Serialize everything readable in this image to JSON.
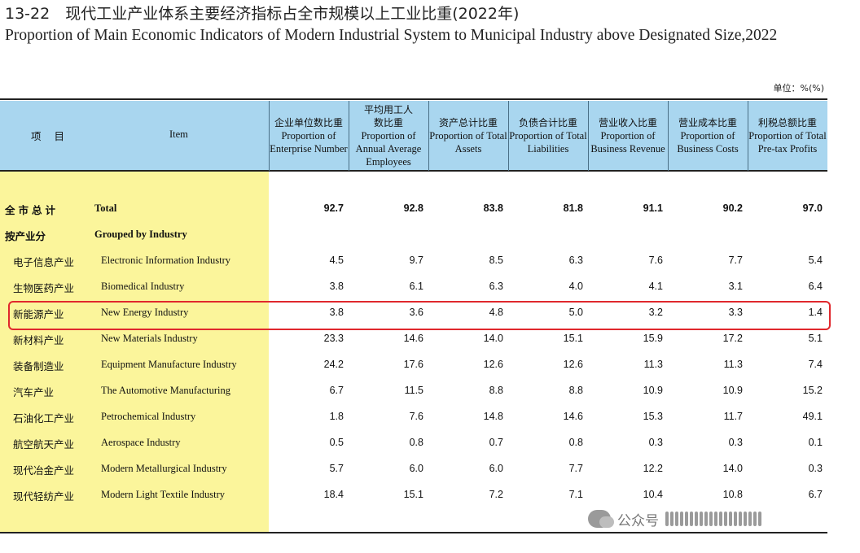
{
  "title": {
    "cn": "13-22　现代工业产业体系主要经济指标占全市规模以上工业比重(2022年)",
    "en": "Proportion of Main Economic Indicators of Modern Industrial System to Municipal Industry above Designated Size,2022"
  },
  "unit": "单位：%(%)",
  "header": {
    "item_cn": "项 目",
    "item_en": "Item",
    "columns": [
      {
        "cn": "企业单位数比重",
        "en": "Proportion of Enterprise Number"
      },
      {
        "cn": "平均用工人数比重",
        "en": "Proportion of Annual Average Employees"
      },
      {
        "cn": "资产总计比重",
        "en": "Proportion of Total Assets"
      },
      {
        "cn": "负债合计比重",
        "en": "Proportion of Total Liabilities"
      },
      {
        "cn": "营业收入比重",
        "en": "Proportion of Business Revenue"
      },
      {
        "cn": "营业成本比重",
        "en": "Proportion of Business Costs"
      },
      {
        "cn": "利税总额比重",
        "en": "Proportion of Total Pre-tax Profits"
      }
    ]
  },
  "rows": [
    {
      "cn": "全市总计",
      "en": "Total",
      "values": [
        "92.7",
        "92.8",
        "83.8",
        "81.8",
        "91.1",
        "90.2",
        "97.0"
      ]
    },
    {
      "cn": "按产业分",
      "en": "Grouped by Industry",
      "values": []
    },
    {
      "cn": "电子信息产业",
      "en": "Electronic Information Industry",
      "values": [
        "4.5",
        "9.7",
        "8.5",
        "6.3",
        "7.6",
        "7.7",
        "5.4"
      ]
    },
    {
      "cn": "生物医药产业",
      "en": "Biomedical Industry",
      "values": [
        "3.8",
        "6.1",
        "6.3",
        "4.0",
        "4.1",
        "3.1",
        "6.4"
      ]
    },
    {
      "cn": "新能源产业",
      "en": "New Energy Industry",
      "values": [
        "3.8",
        "3.6",
        "4.8",
        "5.0",
        "3.2",
        "3.3",
        "1.4"
      ]
    },
    {
      "cn": "新材料产业",
      "en": "New Materials Industry",
      "values": [
        "23.3",
        "14.6",
        "14.0",
        "15.1",
        "15.9",
        "17.2",
        "5.1"
      ]
    },
    {
      "cn": "装备制造业",
      "en": "Equipment Manufacture Industry",
      "values": [
        "24.2",
        "17.6",
        "12.6",
        "12.6",
        "11.3",
        "11.3",
        "7.4"
      ]
    },
    {
      "cn": "汽车产业",
      "en": "The Automotive Manufacturing",
      "values": [
        "6.7",
        "11.5",
        "8.8",
        "8.8",
        "10.9",
        "10.9",
        "15.2"
      ]
    },
    {
      "cn": "石油化工产业",
      "en": "Petrochemical Industry",
      "values": [
        "1.8",
        "7.6",
        "14.8",
        "14.6",
        "15.3",
        "11.7",
        "49.1"
      ]
    },
    {
      "cn": "航空航天产业",
      "en": "Aerospace Industry",
      "values": [
        "0.5",
        "0.8",
        "0.7",
        "0.8",
        "0.3",
        "0.3",
        "0.1"
      ]
    },
    {
      "cn": "现代冶金产业",
      "en": "Modern Metallurgical Industry",
      "values": [
        "5.7",
        "6.0",
        "6.0",
        "7.7",
        "12.2",
        "14.0",
        "0.3"
      ]
    },
    {
      "cn": "现代轻纺产业",
      "en": "Modern Light Textile Industry",
      "values": [
        "18.4",
        "15.1",
        "7.2",
        "7.1",
        "10.4",
        "10.8",
        "6.7"
      ]
    }
  ],
  "watermark": {
    "text": "公众号",
    "icon": "wechat-icon"
  },
  "colors": {
    "header_bg": "#a9d6ef",
    "item_col_bg": "#fbf59b",
    "highlight": "#e0282d"
  }
}
